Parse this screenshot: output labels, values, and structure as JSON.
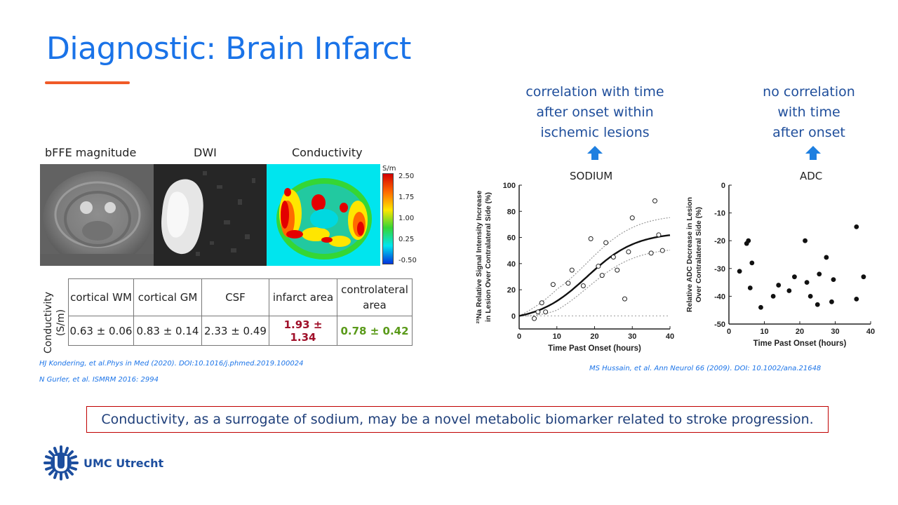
{
  "slide": {
    "title": "Diagnostic: Brain Infarct",
    "accent_color": "#f05a28",
    "title_color": "#1a73e8"
  },
  "images": {
    "labels": [
      "bFFE magnitude",
      "DWI",
      "Conductivity"
    ],
    "colorbar": {
      "unit": "S/m",
      "ticks": [
        "2.50",
        "1.75",
        "1.00",
        "0.25",
        "-0.50"
      ]
    }
  },
  "table": {
    "row_label": "Conductivity (S/m)",
    "headers": [
      "cortical WM",
      "cortical GM",
      "CSF",
      "infarct area",
      "controlateral area"
    ],
    "values": [
      "0.63 ± 0.06",
      "0.83 ± 0.14",
      "2.33 ± 0.49",
      "1.93 ± 1.34",
      "0.78 ± 0.42"
    ],
    "highlight_colors": {
      "infarct": "#a0102a",
      "controlateral": "#5a9a1a"
    }
  },
  "references": {
    "left_1": "HJ Kondering, et al.Phys in Med (2020). DOI:10.1016/j.phmed.2019.100024",
    "left_2": "N Gurler, et al. ISMRM 2016: 2994",
    "right": "MS Hussain, et al. Ann Neurol 66 (2009). DOI: 10.1002/ana.21648"
  },
  "annotations": {
    "sodium": [
      "correlation with time",
      "after onset within",
      "ischemic lesions"
    ],
    "adc": [
      "no correlation",
      "with time",
      "after onset"
    ]
  },
  "chart_data": [
    {
      "type": "scatter",
      "title": "SODIUM",
      "xlabel": "Time Past Onset (hours)",
      "ylabel": "23Na Relative Signal Intensity Increase in Lesion Over Contralateral Side (%)",
      "ylabel_lines": [
        "²³Na Relative Signal Intensity Increase",
        "in Lesion Over Contralateral Side (%)"
      ],
      "xlim": [
        0,
        40
      ],
      "ylim": [
        -10,
        100
      ],
      "xticks": [
        0,
        10,
        20,
        30,
        40
      ],
      "yticks": [
        0,
        20,
        40,
        60,
        80,
        100
      ],
      "marker": "open-circle",
      "points": [
        [
          4,
          -2
        ],
        [
          5,
          3
        ],
        [
          6,
          10
        ],
        [
          7,
          3
        ],
        [
          9,
          24
        ],
        [
          13,
          25
        ],
        [
          14,
          35
        ],
        [
          17,
          23
        ],
        [
          19,
          59
        ],
        [
          21,
          38
        ],
        [
          22,
          31
        ],
        [
          23,
          56
        ],
        [
          25,
          45
        ],
        [
          26,
          35
        ],
        [
          28,
          13
        ],
        [
          29,
          49
        ],
        [
          30,
          75
        ],
        [
          35,
          48
        ],
        [
          36,
          88
        ],
        [
          37,
          62
        ],
        [
          38,
          50
        ]
      ],
      "fit_curve": true,
      "confidence_band": true
    },
    {
      "type": "scatter",
      "title": "ADC",
      "xlabel": "Time Past Onset (hours)",
      "ylabel": "Relative ADC Decrease in Lesion Over Contralateral Side (%)",
      "ylabel_lines": [
        "Relative ADC Decrease in Lesion",
        "Over Contralateral Side (%)"
      ],
      "xlim": [
        0,
        40
      ],
      "ylim": [
        -50,
        0
      ],
      "xticks": [
        0,
        10,
        20,
        30,
        40
      ],
      "yticks": [
        0,
        -10,
        -20,
        -30,
        -40,
        -50
      ],
      "marker": "filled-circle",
      "points": [
        [
          3,
          -31
        ],
        [
          5,
          -21
        ],
        [
          5.5,
          -20
        ],
        [
          6,
          -37
        ],
        [
          6.5,
          -28
        ],
        [
          9,
          -44
        ],
        [
          12.5,
          -40
        ],
        [
          14,
          -36
        ],
        [
          17,
          -38
        ],
        [
          18.5,
          -33
        ],
        [
          21.5,
          -20
        ],
        [
          22,
          -35
        ],
        [
          23,
          -40
        ],
        [
          25,
          -43
        ],
        [
          25.5,
          -32
        ],
        [
          27.5,
          -26
        ],
        [
          29,
          -42
        ],
        [
          29.5,
          -34
        ],
        [
          36,
          -15
        ],
        [
          36,
          -41
        ],
        [
          38,
          -33
        ]
      ]
    }
  ],
  "conclusion": "Conductivity, as a surrogate of sodium, may be a novel metabolic biomarker related to stroke progression.",
  "logo": {
    "text": "UMC Utrecht",
    "color": "#1d4e9e"
  }
}
